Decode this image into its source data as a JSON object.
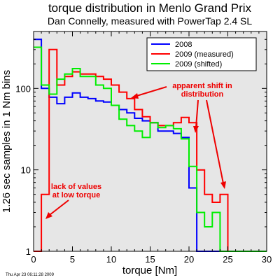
{
  "chart_data": {
    "type": "line",
    "step": true,
    "title": "torque distribution in Menlo Grand Prix",
    "subtitle": "Dan Connelly, measured with PowerTap 2.4 SL",
    "xlabel": "torque [Nm]",
    "ylabel": "1.26 sec samples in 1 Nm bins",
    "xlim": [
      0,
      30
    ],
    "ylim": [
      1,
      500
    ],
    "yscale": "log",
    "xticks": [
      0,
      5,
      10,
      15,
      20,
      25,
      30
    ],
    "yticks": [
      1,
      10,
      100
    ],
    "grid": false,
    "background": "#e6e6e6",
    "legend_position": "top-right",
    "bin_edges": [
      0,
      1,
      2,
      3,
      4,
      5,
      6,
      7,
      8,
      9,
      10,
      11,
      12,
      13,
      14,
      15,
      16,
      17,
      18,
      19,
      20,
      21,
      22,
      23,
      24,
      25,
      26,
      27,
      28,
      29,
      30
    ],
    "series": [
      {
        "name": "2008",
        "color": "#0000ff",
        "values": [
          400,
          100,
          78,
          65,
          78,
          88,
          78,
          75,
          70,
          68,
          62,
          55,
          50,
          43,
          40,
          38,
          30,
          30,
          28,
          25,
          6,
          1,
          1,
          1,
          1,
          1,
          1,
          1,
          1,
          1
        ]
      },
      {
        "name": "2009 (measured)",
        "color": "#ff0000",
        "values": [
          1,
          5,
          300,
          110,
          140,
          160,
          150,
          150,
          140,
          130,
          110,
          90,
          75,
          55,
          45,
          38,
          35,
          35,
          38,
          44,
          38,
          10,
          5,
          4,
          5,
          1,
          1,
          1,
          1,
          1
        ]
      },
      {
        "name": "2009 (shifted)",
        "color": "#00ee00",
        "values": [
          320,
          110,
          85,
          130,
          150,
          175,
          140,
          140,
          110,
          100,
          62,
          42,
          35,
          30,
          25,
          38,
          33,
          35,
          32,
          24,
          11,
          3,
          2,
          3,
          1,
          1,
          1,
          1,
          1,
          1
        ]
      }
    ],
    "annotations": [
      {
        "lines": [
          "apparent shift in",
          "distribution"
        ]
      },
      {
        "lines": [
          "lack of values",
          "at low torque"
        ]
      }
    ]
  },
  "timestamp": "Thu Apr 23 06:11:28 2009"
}
